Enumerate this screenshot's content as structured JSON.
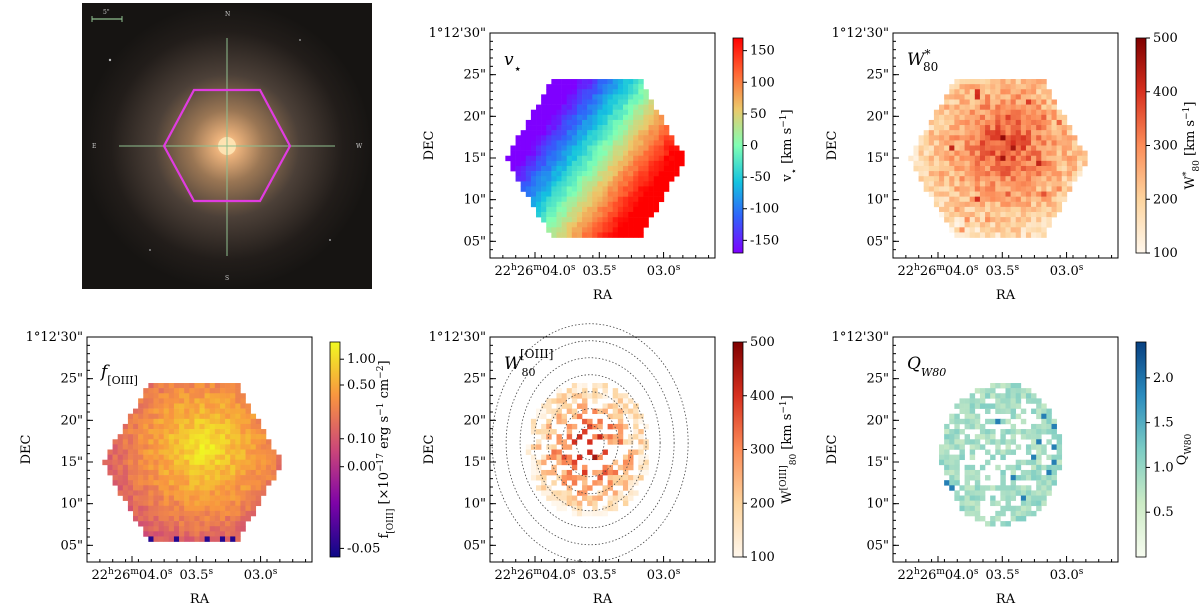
{
  "photo": {
    "scale_label": "5\"",
    "compass": {
      "north": "N",
      "south": "S",
      "east": "E",
      "west": "W"
    },
    "hexagon_color": "#e03ce0"
  },
  "axes": {
    "ra_label": "RA",
    "dec_label": "DEC",
    "ra_ticks": [
      {
        "v": 0,
        "t": "22h26m04.0s"
      },
      {
        "v": 0.5,
        "t": "03.5s"
      },
      {
        "v": 1.0,
        "t": "03.0s"
      }
    ],
    "dec_ticks": [
      {
        "v": 5,
        "t": "05\""
      },
      {
        "v": 10,
        "t": "10\""
      },
      {
        "v": 15,
        "t": "15\""
      },
      {
        "v": 20,
        "t": "20\""
      },
      {
        "v": 25,
        "t": "25\""
      },
      {
        "v": 30,
        "t": "1°12'30\""
      }
    ],
    "ra_range_sec_offset": [
      -0.35,
      1.4
    ],
    "dec_range_arcsec": [
      3,
      30
    ]
  },
  "chart_data": [
    {
      "type": "heatmap",
      "id": "stellar-velocity",
      "title": "v⋆",
      "colorbar": {
        "label": "v⋆ [km s⁻¹]",
        "ticks": [
          150,
          100,
          50,
          0,
          -50,
          -100,
          -150
        ],
        "range": [
          -170,
          170
        ],
        "cmap": "rainbow"
      },
      "description_values": {
        "approaching_side": "upper-left",
        "receding_side": "lower-right",
        "max": 160,
        "min": -160
      }
    },
    {
      "type": "heatmap",
      "id": "stellar-w80",
      "title": "W*80",
      "colorbar": {
        "label": "W*80 [km s⁻¹]",
        "ticks": [
          500,
          400,
          300,
          200,
          100
        ],
        "range": [
          100,
          500
        ],
        "cmap": "OrRd"
      }
    },
    {
      "type": "heatmap",
      "id": "oiii-flux",
      "title": "f[OIII]",
      "colorbar": {
        "label": "f[OIII] [×10⁻¹⁷ erg s⁻¹ cm⁻²]",
        "ticks": [
          "1.00",
          "0.50",
          "0.10",
          "0.00",
          "-0.05"
        ],
        "cmap": "plasma"
      }
    },
    {
      "type": "heatmap",
      "id": "oiii-w80",
      "title": "W80[OIII]",
      "colorbar": {
        "label": "W80[OIII] [km s⁻¹]",
        "ticks": [
          500,
          400,
          300,
          200,
          100
        ],
        "range": [
          100,
          500
        ],
        "cmap": "OrRd"
      },
      "contours": 7
    },
    {
      "type": "heatmap",
      "id": "q-w80",
      "title": "QW80",
      "colorbar": {
        "label": "QW80",
        "ticks": [
          "2.0",
          "1.5",
          "1.0",
          "0.5"
        ],
        "range": [
          0,
          2.4
        ],
        "cmap": "GnBu"
      }
    }
  ]
}
